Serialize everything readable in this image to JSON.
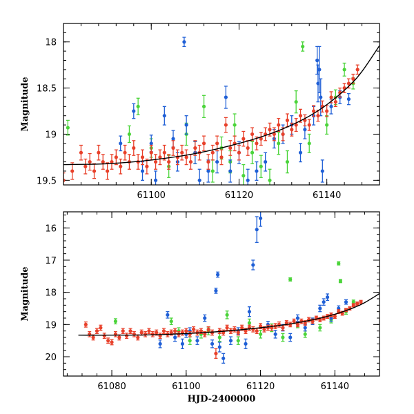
{
  "chart_data": [
    {
      "type": "scatter",
      "title": "",
      "xlabel": "",
      "ylabel": "Magnitude",
      "xlim": [
        61080,
        61152
      ],
      "ylim": [
        19.55,
        17.8
      ],
      "y_inverted": true,
      "x_ticks": [
        "61100",
        "61120",
        "61140"
      ],
      "x_tick_values": [
        61100,
        61120,
        61140
      ],
      "y_ticks": [
        "18",
        "18.5",
        "19",
        "19.5"
      ],
      "y_tick_values": [
        18,
        18.5,
        19,
        19.5
      ],
      "colors": {
        "red": "#e8402a",
        "blue": "#1f5fd6",
        "green": "#4bd43a",
        "fit": "#000000"
      },
      "fit_curve": {
        "x": [
          61080,
          61090,
          61100,
          61110,
          61120,
          61128,
          61135,
          61140,
          61145,
          61148,
          61152
        ],
        "y": [
          19.33,
          19.32,
          19.28,
          19.21,
          19.1,
          18.98,
          18.83,
          18.68,
          18.48,
          18.32,
          18.04
        ]
      },
      "series": [
        {
          "name": "red",
          "x": [
            61080,
            61082,
            61084,
            61085,
            61086,
            61087,
            61088,
            61089,
            61090,
            61091,
            61092,
            61093,
            61094,
            61095,
            61096,
            61097,
            61098,
            61099,
            61100,
            61101,
            61102,
            61103,
            61104,
            61105,
            61106,
            61107,
            61108,
            61109,
            61110,
            61111,
            61112,
            61113,
            61114,
            61115,
            61116,
            61117,
            61118,
            61119,
            61120,
            61121,
            61122,
            61123,
            61124,
            61125,
            61126,
            61127,
            61128,
            61129,
            61130,
            61131,
            61132,
            61133,
            61134,
            61135,
            61136,
            61137,
            61138,
            61139,
            61140,
            61141,
            61142,
            61143,
            61144,
            61145,
            61146,
            61147
          ],
          "y": [
            19.5,
            19.4,
            19.2,
            19.35,
            19.3,
            19.4,
            19.2,
            19.3,
            19.4,
            19.3,
            19.25,
            19.35,
            19.2,
            19.3,
            19.15,
            19.3,
            19.25,
            19.35,
            19.2,
            19.3,
            19.25,
            19.2,
            19.3,
            19.15,
            19.25,
            19.2,
            19.25,
            19.3,
            19.15,
            19.2,
            19.1,
            19.3,
            19.2,
            19.1,
            19.25,
            18.9,
            19.15,
            19.1,
            19.2,
            19.05,
            19.15,
            19.0,
            19.1,
            19.05,
            19.0,
            18.95,
            19.0,
            18.9,
            19.0,
            18.85,
            18.95,
            18.9,
            18.8,
            18.85,
            18.9,
            18.75,
            18.8,
            18.7,
            18.75,
            18.6,
            18.65,
            18.55,
            18.5,
            18.45,
            18.4,
            18.3
          ],
          "err": [
            0.08,
            0.09,
            0.08,
            0.08,
            0.09,
            0.08,
            0.08,
            0.08,
            0.09,
            0.08,
            0.08,
            0.08,
            0.08,
            0.08,
            0.08,
            0.08,
            0.08,
            0.08,
            0.08,
            0.08,
            0.08,
            0.08,
            0.08,
            0.08,
            0.08,
            0.08,
            0.08,
            0.08,
            0.08,
            0.08,
            0.08,
            0.08,
            0.08,
            0.08,
            0.08,
            0.08,
            0.08,
            0.08,
            0.08,
            0.08,
            0.08,
            0.07,
            0.07,
            0.07,
            0.07,
            0.07,
            0.07,
            0.07,
            0.07,
            0.07,
            0.07,
            0.07,
            0.07,
            0.06,
            0.06,
            0.06,
            0.06,
            0.06,
            0.06,
            0.06,
            0.05,
            0.05,
            0.05,
            0.05,
            0.05,
            0.05
          ]
        },
        {
          "name": "blue",
          "x": [
            61093,
            61096,
            61098,
            61100,
            61101,
            61103,
            61105,
            61106,
            61107.5,
            61108,
            61110,
            61111,
            61113,
            61115,
            61117,
            61118,
            61120,
            61122,
            61124,
            61126,
            61128,
            61130,
            61132,
            61134,
            61135,
            61137,
            61137.8,
            61138,
            61138.3,
            61138.6,
            61139,
            61141,
            61143,
            61145
          ],
          "y": [
            19.1,
            18.75,
            19.4,
            19.1,
            19.5,
            18.8,
            19.05,
            19.3,
            18.0,
            18.9,
            19.2,
            19.5,
            19.4,
            19.3,
            18.6,
            19.4,
            19.2,
            19.5,
            19.4,
            19.3,
            19.05,
            19.0,
            18.9,
            19.2,
            18.95,
            18.8,
            18.2,
            18.45,
            18.3,
            18.6,
            19.4,
            18.7,
            18.6,
            18.62
          ],
          "err": [
            0.08,
            0.08,
            0.1,
            0.09,
            0.1,
            0.1,
            0.09,
            0.1,
            0.05,
            0.1,
            0.12,
            0.12,
            0.12,
            0.12,
            0.12,
            0.12,
            0.12,
            0.12,
            0.1,
            0.1,
            0.1,
            0.1,
            0.1,
            0.1,
            0.1,
            0.1,
            0.15,
            0.2,
            0.25,
            0.2,
            0.12,
            0.08,
            0.07,
            0.06
          ]
        },
        {
          "name": "green",
          "x": [
            61081,
            61095,
            61097,
            61100,
            61104,
            61108,
            61110,
            61112,
            61114,
            61116,
            61118,
            61119,
            61121,
            61123,
            61125,
            61127,
            61129,
            61131,
            61133,
            61134.5,
            61136,
            61140,
            61142,
            61144,
            61146
          ],
          "y": [
            18.93,
            19.0,
            18.7,
            19.15,
            19.35,
            19.0,
            19.2,
            18.7,
            19.4,
            19.15,
            19.3,
            18.9,
            19.45,
            19.2,
            19.35,
            19.5,
            19.1,
            19.3,
            18.65,
            18.05,
            19.1,
            18.9,
            18.6,
            18.3,
            18.45
          ],
          "err": [
            0.08,
            0.09,
            0.09,
            0.1,
            0.12,
            0.12,
            0.12,
            0.12,
            0.12,
            0.12,
            0.12,
            0.12,
            0.12,
            0.12,
            0.12,
            0.12,
            0.12,
            0.12,
            0.12,
            0.05,
            0.1,
            0.1,
            0.08,
            0.07,
            0.06
          ]
        }
      ]
    },
    {
      "type": "scatter",
      "title": "",
      "xlabel": "HJD-2400000",
      "ylabel": "Magnitude",
      "xlim": [
        61067,
        61152
      ],
      "ylim": [
        20.6,
        15.5
      ],
      "y_inverted": true,
      "x_ticks": [
        "61080",
        "61100",
        "61120",
        "61140"
      ],
      "x_tick_values": [
        61080,
        61100,
        61120,
        61140
      ],
      "y_ticks": [
        "16",
        "17",
        "18",
        "19",
        "20"
      ],
      "y_tick_values": [
        16,
        17,
        18,
        19,
        20
      ],
      "colors": {
        "red": "#e8402a",
        "blue": "#1f5fd6",
        "green": "#4bd43a",
        "fit": "#000000"
      },
      "fit_curve": {
        "x": [
          61071,
          61080,
          61090,
          61100,
          61110,
          61120,
          61128,
          61135,
          61140,
          61145,
          61148,
          61152
        ],
        "y": [
          19.33,
          19.33,
          19.32,
          19.28,
          19.21,
          19.1,
          18.98,
          18.83,
          18.68,
          18.48,
          18.32,
          18.04
        ]
      },
      "series": [
        {
          "name": "red",
          "x": [
            61073,
            61074,
            61075,
            61076,
            61077,
            61078,
            61079,
            61080,
            61081,
            61082,
            61083,
            61084,
            61085,
            61086,
            61087,
            61088,
            61089,
            61090,
            61091,
            61092,
            61093,
            61094,
            61095,
            61096,
            61097,
            61098,
            61099,
            61100,
            61101,
            61102,
            61103,
            61104,
            61105,
            61106,
            61107,
            61108,
            61109,
            61110,
            61111,
            61112,
            61113,
            61114,
            61115,
            61116,
            61117,
            61118,
            61119,
            61120,
            61121,
            61122,
            61123,
            61124,
            61125,
            61126,
            61127,
            61128,
            61129,
            61130,
            61131,
            61132,
            61133,
            61134,
            61135,
            61136,
            61137,
            61138,
            61139,
            61140,
            61141,
            61142,
            61143,
            61144,
            61145,
            61146,
            61147
          ],
          "y": [
            19.0,
            19.3,
            19.4,
            19.2,
            19.1,
            19.35,
            19.5,
            19.55,
            19.3,
            19.4,
            19.2,
            19.35,
            19.2,
            19.3,
            19.4,
            19.25,
            19.3,
            19.2,
            19.3,
            19.25,
            19.35,
            19.2,
            19.3,
            19.25,
            19.2,
            19.3,
            19.25,
            19.2,
            19.3,
            19.15,
            19.25,
            19.2,
            19.3,
            19.15,
            19.25,
            19.9,
            19.2,
            19.25,
            19.1,
            19.2,
            19.15,
            19.25,
            19.1,
            19.2,
            19.1,
            19.15,
            19.2,
            19.05,
            19.15,
            19.1,
            19.1,
            19.05,
            19.0,
            19.1,
            18.95,
            19.0,
            18.9,
            19.0,
            18.9,
            18.95,
            18.85,
            18.9,
            18.8,
            18.85,
            18.8,
            18.75,
            18.7,
            18.75,
            18.6,
            18.65,
            18.55,
            18.5,
            18.4,
            18.35,
            18.3
          ],
          "err": [
            0.08,
            0.08,
            0.08,
            0.08,
            0.08,
            0.08,
            0.08,
            0.08,
            0.08,
            0.08,
            0.08,
            0.08,
            0.08,
            0.08,
            0.08,
            0.08,
            0.08,
            0.08,
            0.08,
            0.08,
            0.08,
            0.08,
            0.08,
            0.08,
            0.08,
            0.08,
            0.08,
            0.08,
            0.08,
            0.08,
            0.08,
            0.08,
            0.08,
            0.08,
            0.08,
            0.15,
            0.08,
            0.08,
            0.08,
            0.08,
            0.08,
            0.08,
            0.08,
            0.08,
            0.08,
            0.08,
            0.08,
            0.08,
            0.08,
            0.08,
            0.08,
            0.08,
            0.08,
            0.08,
            0.07,
            0.07,
            0.07,
            0.07,
            0.07,
            0.07,
            0.07,
            0.07,
            0.06,
            0.06,
            0.06,
            0.06,
            0.06,
            0.06,
            0.06,
            0.06,
            0.05,
            0.05,
            0.05,
            0.05,
            0.05
          ]
        },
        {
          "name": "blue",
          "x": [
            61093,
            61095,
            61097,
            61099,
            61100,
            61101,
            61103,
            61105,
            61107,
            61108,
            61108.5,
            61109,
            61110,
            61112,
            61114,
            61116,
            61117,
            61118,
            61119,
            61120,
            61122,
            61124,
            61126,
            61128,
            61130,
            61132,
            61134,
            61136,
            61137,
            61138,
            61139,
            61141,
            61143
          ],
          "y": [
            19.6,
            18.7,
            19.4,
            19.6,
            19.3,
            19.2,
            19.5,
            18.8,
            19.6,
            17.95,
            17.45,
            19.7,
            20.05,
            19.5,
            19.2,
            19.6,
            18.6,
            17.15,
            16.05,
            15.7,
            19.0,
            19.3,
            19.1,
            19.4,
            18.8,
            19.1,
            18.9,
            18.5,
            18.3,
            18.15,
            18.8,
            18.5,
            18.3
          ],
          "err": [
            0.12,
            0.1,
            0.12,
            0.15,
            0.1,
            0.1,
            0.12,
            0.1,
            0.12,
            0.08,
            0.08,
            0.15,
            0.15,
            0.12,
            0.1,
            0.15,
            0.15,
            0.15,
            0.4,
            0.25,
            0.1,
            0.12,
            0.1,
            0.12,
            0.1,
            0.1,
            0.1,
            0.1,
            0.1,
            0.1,
            0.1,
            0.08,
            0.07
          ]
        },
        {
          "name": "green",
          "x": [
            61081,
            61096,
            61098,
            61101,
            61104,
            61106,
            61109,
            61111,
            61114,
            61117,
            61120,
            61123,
            61126,
            61128,
            61130,
            61132,
            61134,
            61136,
            61139,
            61141,
            61141.5,
            61143,
            61145
          ],
          "y": [
            18.9,
            18.9,
            19.2,
            19.5,
            19.3,
            19.2,
            19.4,
            18.7,
            19.5,
            18.95,
            19.3,
            19.1,
            19.4,
            17.6,
            19.0,
            19.3,
            18.9,
            19.1,
            18.85,
            17.1,
            17.65,
            18.6,
            18.3
          ],
          "err": [
            0.08,
            0.1,
            0.1,
            0.12,
            0.12,
            0.12,
            0.12,
            0.12,
            0.12,
            0.12,
            0.12,
            0.12,
            0.12,
            0.05,
            0.1,
            0.1,
            0.1,
            0.1,
            0.1,
            0.05,
            0.05,
            0.08,
            0.06
          ]
        }
      ]
    }
  ]
}
